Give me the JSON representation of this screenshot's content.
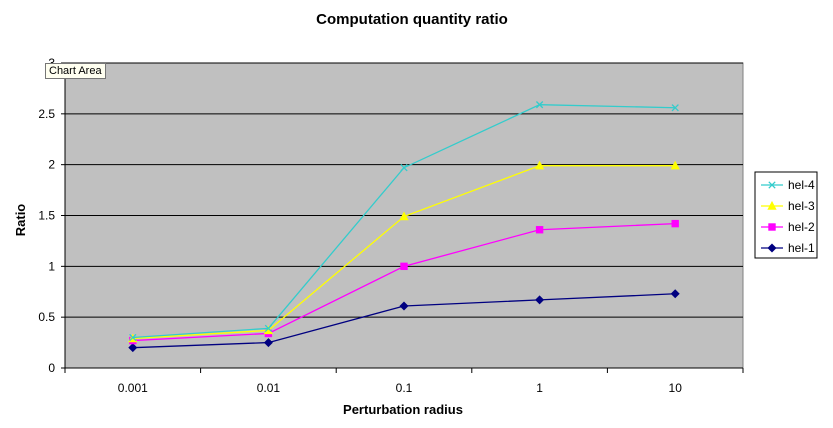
{
  "chart_data": {
    "type": "line",
    "title": "Computation quantity ratio",
    "xlabel": "Perturbation radius",
    "ylabel": "Ratio",
    "categories": [
      "0.001",
      "0.01",
      "0.1",
      "1",
      "10"
    ],
    "ylim": [
      0,
      3
    ],
    "yticks": [
      "0",
      "0.5",
      "1",
      "1.5",
      "2",
      "2.5",
      "3"
    ],
    "grid": true,
    "legend_position": "right",
    "plot_background": "#c0c0c0",
    "series": [
      {
        "name": "hel-4",
        "color": "#33cccc",
        "marker": "x",
        "values": [
          0.3,
          0.39,
          1.97,
          2.59,
          2.56
        ]
      },
      {
        "name": "hel-3",
        "color": "#ffff00",
        "marker": "triangle",
        "values": [
          0.29,
          0.37,
          1.49,
          1.99,
          1.99
        ]
      },
      {
        "name": "hel-2",
        "color": "#ff00ff",
        "marker": "square",
        "values": [
          0.27,
          0.34,
          1.0,
          1.36,
          1.42
        ]
      },
      {
        "name": "hel-1",
        "color": "#000080",
        "marker": "diamond",
        "values": [
          0.2,
          0.25,
          0.61,
          0.67,
          0.73
        ]
      }
    ]
  },
  "tooltip": "Chart Area"
}
